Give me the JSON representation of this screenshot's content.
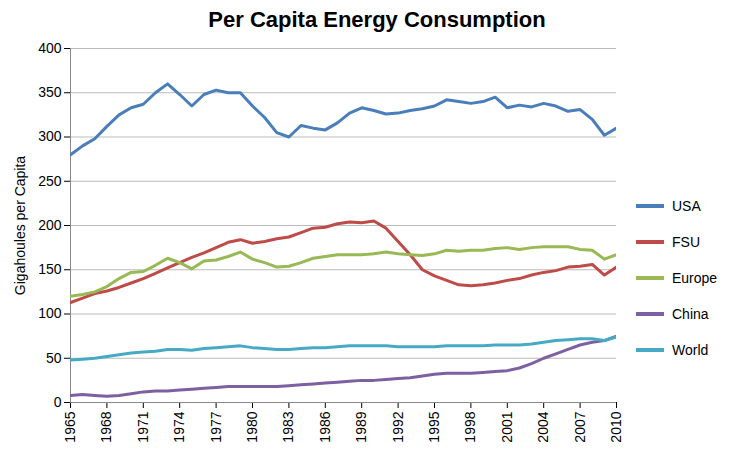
{
  "chart_data": {
    "type": "line",
    "title": "Per Capita Energy Consumption",
    "y_label": "Gigahoules per Capita",
    "x": [
      1965,
      1966,
      1967,
      1968,
      1969,
      1970,
      1971,
      1972,
      1973,
      1974,
      1975,
      1976,
      1977,
      1978,
      1979,
      1980,
      1981,
      1982,
      1983,
      1984,
      1985,
      1986,
      1987,
      1988,
      1989,
      1990,
      1991,
      1992,
      1993,
      1994,
      1995,
      1996,
      1997,
      1998,
      1999,
      2000,
      2001,
      2002,
      2003,
      2004,
      2005,
      2006,
      2007,
      2008,
      2009,
      2010
    ],
    "xlim": [
      1965,
      2010
    ],
    "xticks": [
      1965,
      1968,
      1971,
      1974,
      1977,
      1980,
      1983,
      1986,
      1989,
      1992,
      1995,
      1998,
      2001,
      2004,
      2007,
      2010
    ],
    "ylim": [
      0,
      400
    ],
    "yticks": [
      0,
      50,
      100,
      150,
      200,
      250,
      300,
      350,
      400
    ],
    "grid": true,
    "legend": "right",
    "series": [
      {
        "name": "USA",
        "color": "#4a7ebb",
        "values": [
          280,
          290,
          298,
          312,
          325,
          333,
          337,
          350,
          360,
          348,
          335,
          348,
          353,
          350,
          350,
          335,
          322,
          305,
          300,
          313,
          310,
          308,
          316,
          327,
          333,
          330,
          326,
          327,
          330,
          332,
          335,
          342,
          340,
          338,
          340,
          345,
          333,
          336,
          334,
          338,
          335,
          329,
          331,
          320,
          302,
          310
        ]
      },
      {
        "name": "FSU",
        "color": "#be4b48",
        "values": [
          113,
          118,
          123,
          126,
          130,
          135,
          140,
          146,
          152,
          158,
          164,
          169,
          175,
          181,
          184,
          180,
          182,
          185,
          187,
          192,
          197,
          198,
          202,
          204,
          203,
          205,
          197,
          182,
          167,
          150,
          143,
          138,
          133,
          132,
          133,
          135,
          138,
          140,
          144,
          147,
          149,
          153,
          154,
          156,
          144,
          153
        ]
      },
      {
        "name": "Europe",
        "color": "#98b954",
        "values": [
          120,
          122,
          125,
          131,
          140,
          147,
          148,
          155,
          163,
          158,
          151,
          160,
          161,
          165,
          170,
          162,
          158,
          153,
          154,
          158,
          163,
          165,
          167,
          167,
          167,
          168,
          170,
          168,
          167,
          166,
          168,
          172,
          171,
          172,
          172,
          174,
          175,
          173,
          175,
          176,
          176,
          176,
          173,
          172,
          162,
          167
        ]
      },
      {
        "name": "China",
        "color": "#7d60a0",
        "values": [
          8,
          9,
          8,
          7,
          8,
          10,
          12,
          13,
          13,
          14,
          15,
          16,
          17,
          18,
          18,
          18,
          18,
          18,
          19,
          20,
          21,
          22,
          23,
          24,
          25,
          25,
          26,
          27,
          28,
          30,
          32,
          33,
          33,
          33,
          34,
          35,
          36,
          39,
          44,
          50,
          55,
          60,
          65,
          68,
          70,
          75
        ]
      },
      {
        "name": "World",
        "color": "#46aac5",
        "values": [
          48,
          49,
          50,
          52,
          54,
          56,
          57,
          58,
          60,
          60,
          59,
          61,
          62,
          63,
          64,
          62,
          61,
          60,
          60,
          61,
          62,
          62,
          63,
          64,
          64,
          64,
          64,
          63,
          63,
          63,
          63,
          64,
          64,
          64,
          64,
          65,
          65,
          65,
          66,
          68,
          70,
          71,
          72,
          72,
          70,
          74
        ]
      }
    ]
  }
}
